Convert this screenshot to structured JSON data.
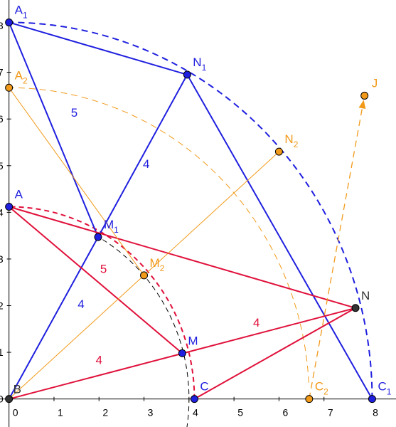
{
  "axes": {
    "x_ticks": [
      "0",
      "1",
      "2",
      "3",
      "4",
      "5",
      "6",
      "7",
      "8"
    ],
    "y_ticks": [
      "1",
      "2",
      "3",
      "4",
      "5",
      "6",
      "7",
      "8"
    ],
    "origin_label": "0",
    "xlim": [
      -0.2,
      8.6
    ],
    "ylim": [
      -0.6,
      8.55
    ]
  },
  "colors": {
    "blue": "#1f1fdf",
    "red": "#e0113b",
    "orange": "#f29a1a",
    "black": "#000000",
    "grey": "#555555"
  },
  "points": [
    {
      "id": "A1",
      "name": "A",
      "sub": "1",
      "x": 0.0,
      "y": 8.07,
      "color": "blue",
      "lx": 8,
      "ly": -12
    },
    {
      "id": "A2",
      "name": "A",
      "sub": "2",
      "x": 0.0,
      "y": 6.67,
      "color": "orange",
      "lx": 8,
      "ly": -12
    },
    {
      "id": "A",
      "name": "A",
      "sub": "",
      "x": 0.0,
      "y": 4.12,
      "color": "blue",
      "lx": 8,
      "ly": -12
    },
    {
      "id": "B",
      "name": "B",
      "sub": "",
      "x": 0.0,
      "y": 0.0,
      "color": "grey",
      "lx": 6,
      "ly": -8
    },
    {
      "id": "N1",
      "name": "N",
      "sub": "1",
      "x": 3.96,
      "y": 6.95,
      "color": "blue",
      "lx": 8,
      "ly": -12
    },
    {
      "id": "M1",
      "name": "M",
      "sub": "1",
      "x": 1.98,
      "y": 3.47,
      "color": "blue",
      "lx": 8,
      "ly": -12
    },
    {
      "id": "M2",
      "name": "M",
      "sub": "2",
      "x": 3.0,
      "y": 2.65,
      "color": "orange",
      "lx": 8,
      "ly": -12
    },
    {
      "id": "N2",
      "name": "N",
      "sub": "2",
      "x": 6.0,
      "y": 5.3,
      "color": "orange",
      "lx": 8,
      "ly": -12
    },
    {
      "id": "J",
      "name": "J",
      "sub": "",
      "x": 7.9,
      "y": 6.5,
      "color": "orange",
      "lx": 10,
      "ly": -12
    },
    {
      "id": "N",
      "name": "N",
      "sub": "",
      "x": 7.7,
      "y": 1.95,
      "color": "grey",
      "lx": 8,
      "ly": -12
    },
    {
      "id": "M",
      "name": "M",
      "sub": "",
      "x": 3.85,
      "y": 0.98,
      "color": "blue",
      "lx": 8,
      "ly": -12
    },
    {
      "id": "C",
      "name": "C",
      "sub": "",
      "x": 4.12,
      "y": 0.0,
      "color": "blue",
      "lx": 8,
      "ly": -12
    },
    {
      "id": "C2",
      "name": "C",
      "sub": "2",
      "x": 6.67,
      "y": 0.0,
      "color": "orange",
      "lx": 8,
      "ly": -12
    },
    {
      "id": "C1",
      "name": "C",
      "sub": "1",
      "x": 8.07,
      "y": 0.0,
      "color": "blue",
      "lx": 8,
      "ly": -12
    }
  ],
  "segments": [
    {
      "from": "A1",
      "to": "N1",
      "color": "blue",
      "width": 2
    },
    {
      "from": "A1",
      "to": "M1",
      "color": "blue",
      "width": 2
    },
    {
      "from": "M1",
      "to": "N1",
      "color": "blue",
      "width": 2
    },
    {
      "from": "B",
      "to": "M1",
      "color": "blue",
      "width": 2
    },
    {
      "from": "N1",
      "to": "C1",
      "color": "blue",
      "width": 2
    },
    {
      "from": "A",
      "to": "M",
      "color": "red",
      "width": 2
    },
    {
      "from": "A",
      "to": "N",
      "color": "red",
      "width": 2
    },
    {
      "from": "B",
      "to": "N",
      "color": "red",
      "width": 2
    },
    {
      "from": "C",
      "to": "N",
      "color": "red",
      "width": 2
    },
    {
      "from": "A2",
      "to": "M2",
      "color": "orange",
      "width": 1
    },
    {
      "from": "B",
      "to": "N2",
      "color": "orange",
      "width": 1
    }
  ],
  "arcs": [
    {
      "id": "arc-blue",
      "cx": 0,
      "cy": 0,
      "r": 8.07,
      "from_deg": 0,
      "to_deg": 90,
      "color": "blue",
      "dash": "9 6",
      "width": 2
    },
    {
      "id": "arc-red",
      "cx": 0,
      "cy": 0,
      "r": 4.12,
      "from_deg": 0,
      "to_deg": 90,
      "color": "red",
      "dash": "7 5",
      "width": 2
    },
    {
      "id": "arc-orange",
      "cx": 0,
      "cy": 0,
      "r": 6.67,
      "from_deg": 3,
      "to_deg": 90,
      "color": "orange",
      "dash": "9 6",
      "width": 1
    },
    {
      "id": "arc-grey",
      "cx": 0,
      "cy": 0,
      "r": 4.0,
      "from_deg": -9,
      "to_deg": 60,
      "color": "black",
      "dash": "7 5",
      "width": 1
    }
  ],
  "arrow": {
    "from": "C2",
    "to": "J",
    "color": "orange",
    "dash": "9 6"
  },
  "lengths": [
    {
      "text": "5",
      "x": 1.45,
      "y": 6.05,
      "color": "blue"
    },
    {
      "text": "4",
      "x": 3.05,
      "y": 4.95,
      "color": "blue"
    },
    {
      "text": "4",
      "x": 1.6,
      "y": 1.95,
      "color": "blue"
    },
    {
      "text": "5",
      "x": 2.1,
      "y": 2.7,
      "color": "red"
    },
    {
      "text": "4",
      "x": 5.5,
      "y": 1.55,
      "color": "red"
    },
    {
      "text": "4",
      "x": 2.0,
      "y": 0.75,
      "color": "red"
    }
  ]
}
